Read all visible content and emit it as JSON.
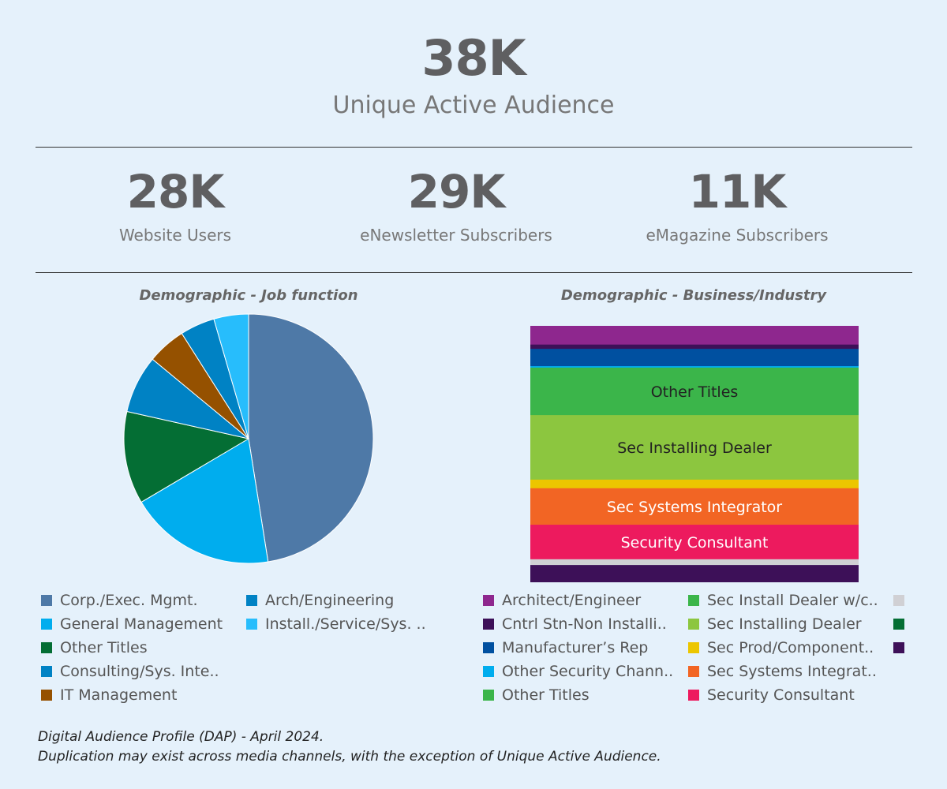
{
  "header": {
    "value": "38K",
    "label": "Unique Active Audience"
  },
  "kpis": [
    {
      "value": "28K",
      "label": "Website Users"
    },
    {
      "value": "29K",
      "label": "eNewsletter Subscribers"
    },
    {
      "value": "11K",
      "label": "eMagazine Subscribers"
    }
  ],
  "chart_data": [
    {
      "type": "pie",
      "title": "Demographic - Job function",
      "slices": [
        {
          "label": "Corp./Exec. Mgmt.",
          "value": 47.5,
          "color": "#4e79a7"
        },
        {
          "label": "General Management",
          "value": 19.0,
          "color": "#00adee"
        },
        {
          "label": "Other Titles",
          "value": 12.0,
          "color": "#046e34"
        },
        {
          "label": "Arch/Engineering",
          "value": 7.5,
          "color": "#0082c4"
        },
        {
          "label": "IT Management",
          "value": 5.0,
          "color": "#955100"
        },
        {
          "label": "Consulting/Sys. Inte..",
          "value": 4.5,
          "color": "#0082c4"
        },
        {
          "label": "Install./Service/Sys. ..",
          "value": 4.5,
          "color": "#27bdfc"
        }
      ],
      "legend": [
        {
          "label": "Corp./Exec. Mgmt.",
          "color": "#4e79a7"
        },
        {
          "label": "General Management",
          "color": "#00adee"
        },
        {
          "label": "Other Titles",
          "color": "#046e34"
        },
        {
          "label": "Consulting/Sys. Inte..",
          "color": "#0082c4"
        },
        {
          "label": "IT Management",
          "color": "#955100"
        },
        {
          "label": "Arch/Engineering",
          "color": "#0082c4"
        },
        {
          "label": "Install./Service/Sys. ..",
          "color": "#27bdfc"
        }
      ]
    },
    {
      "type": "bar",
      "stacked": true,
      "title": "Demographic - Business/Industry",
      "segments": [
        {
          "label": "Architect/Engineer",
          "value": 7.8,
          "color": "#8e278e",
          "show_label": false
        },
        {
          "label": "Cntrl Stn-Non Installi..",
          "value": 1.8,
          "color": "#3d1058",
          "show_label": false
        },
        {
          "label": "Manufacturer's Rep",
          "value": 7.2,
          "color": "#0050a0",
          "show_label": false
        },
        {
          "label": "Other Security Chann..",
          "value": 0.6,
          "color": "#00adee",
          "show_label": false
        },
        {
          "label": "Other Titles",
          "value": 19.8,
          "color": "#3bb54a",
          "show_label": true,
          "text_color": "#222222"
        },
        {
          "label": "Sec Installing Dealer",
          "value": 26.9,
          "color": "#8cc63f",
          "show_label": true,
          "text_color": "#222222"
        },
        {
          "label": "Sec Prod/Component..",
          "value": 3.6,
          "color": "#ecc600",
          "show_label": false
        },
        {
          "label": "Sec Systems Integrator",
          "value": 15.2,
          "color": "#f26524",
          "show_label": true,
          "text_color": "#ffffff"
        },
        {
          "label": "Security Consultant",
          "value": 14.4,
          "color": "#ed1a5e",
          "show_label": true,
          "text_color": "#ffffff"
        },
        {
          "label": "",
          "value": 2.4,
          "color": "#d0d0d4",
          "show_label": false
        },
        {
          "label": "",
          "value": 7.2,
          "color": "#3d1058",
          "show_label": false
        }
      ],
      "legend": [
        {
          "label": "Architect/Engineer",
          "color": "#8e278e"
        },
        {
          "label": "Cntrl Stn-Non Installi..",
          "color": "#3d1058"
        },
        {
          "label": "Manufacturer’s Rep",
          "color": "#0050a0"
        },
        {
          "label": "Other Security Chann..",
          "color": "#00adee"
        },
        {
          "label": "Other Titles",
          "color": "#3bb54a"
        },
        {
          "label": "Sec Install Dealer w/c..",
          "color": "#3bb54a"
        },
        {
          "label": "Sec Installing Dealer",
          "color": "#8cc63f"
        },
        {
          "label": "Sec Prod/Component..",
          "color": "#ecc600"
        },
        {
          "label": "Sec Systems Integrat..",
          "color": "#f26524"
        },
        {
          "label": "Security Consultant",
          "color": "#ed1a5e"
        },
        {
          "label": "",
          "color": "#d0d0d4"
        },
        {
          "label": "",
          "color": "#046e34"
        },
        {
          "label": "",
          "color": "#3d1058"
        }
      ]
    }
  ],
  "footnote": {
    "line1": "Digital Audience Profile (DAP) - April 2024.",
    "line2": "Duplication may exist across media channels, with the exception of Unique Active Audience."
  }
}
